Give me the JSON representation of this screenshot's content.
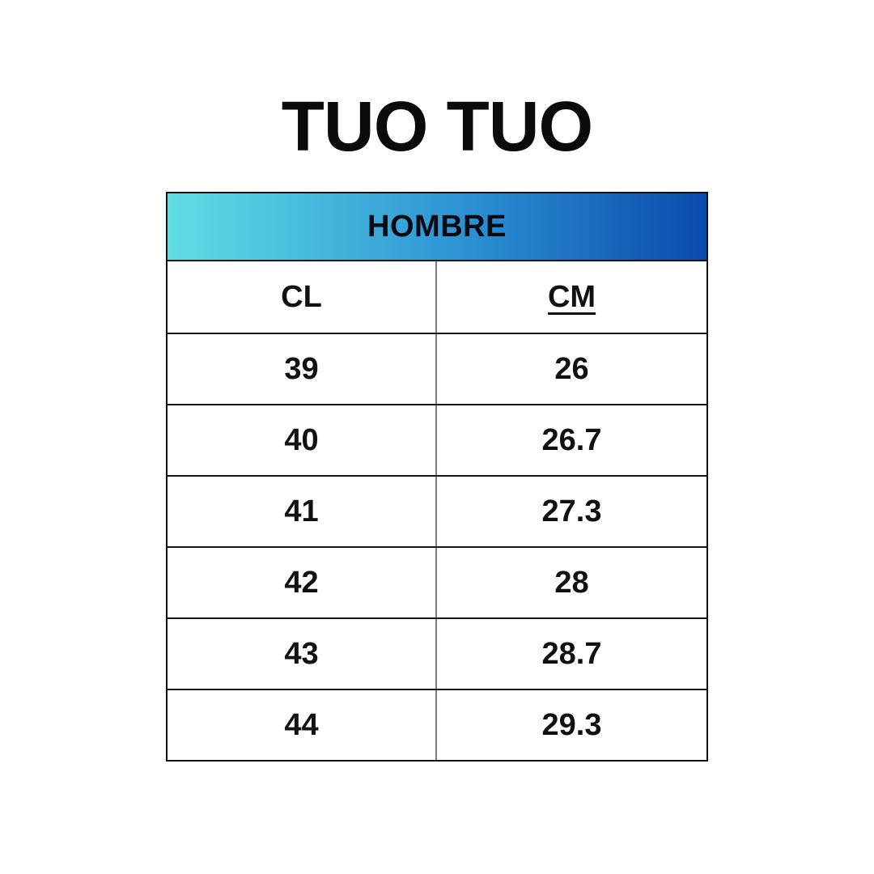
{
  "title": "TUO TUO",
  "table": {
    "section_label": "HOMBRE",
    "columns": [
      {
        "label": "CL",
        "underlined": false
      },
      {
        "label": "CM",
        "underlined": true
      }
    ],
    "rows": [
      {
        "cl": "39",
        "cm": "26"
      },
      {
        "cl": "40",
        "cm": "26.7"
      },
      {
        "cl": "41",
        "cm": "27.3"
      },
      {
        "cl": "42",
        "cm": "28"
      },
      {
        "cl": "43",
        "cm": "28.7"
      },
      {
        "cl": "44",
        "cm": "29.3"
      }
    ]
  },
  "colors": {
    "header_gradient_left": "#60DEE3",
    "header_gradient_mid": "#2F97D5",
    "header_gradient_right": "#0A4AAD",
    "border_black": "#111111",
    "divider_gray": "#7E7E7E",
    "text": "#111111",
    "background": "#FFFFFF"
  },
  "chart_data": {
    "type": "table",
    "title": "TUO TUO",
    "section": "HOMBRE",
    "columns": [
      "CL",
      "CM"
    ],
    "rows": [
      [
        39,
        26
      ],
      [
        40,
        26.7
      ],
      [
        41,
        27.3
      ],
      [
        42,
        28
      ],
      [
        43,
        28.7
      ],
      [
        44,
        29.3
      ]
    ]
  }
}
